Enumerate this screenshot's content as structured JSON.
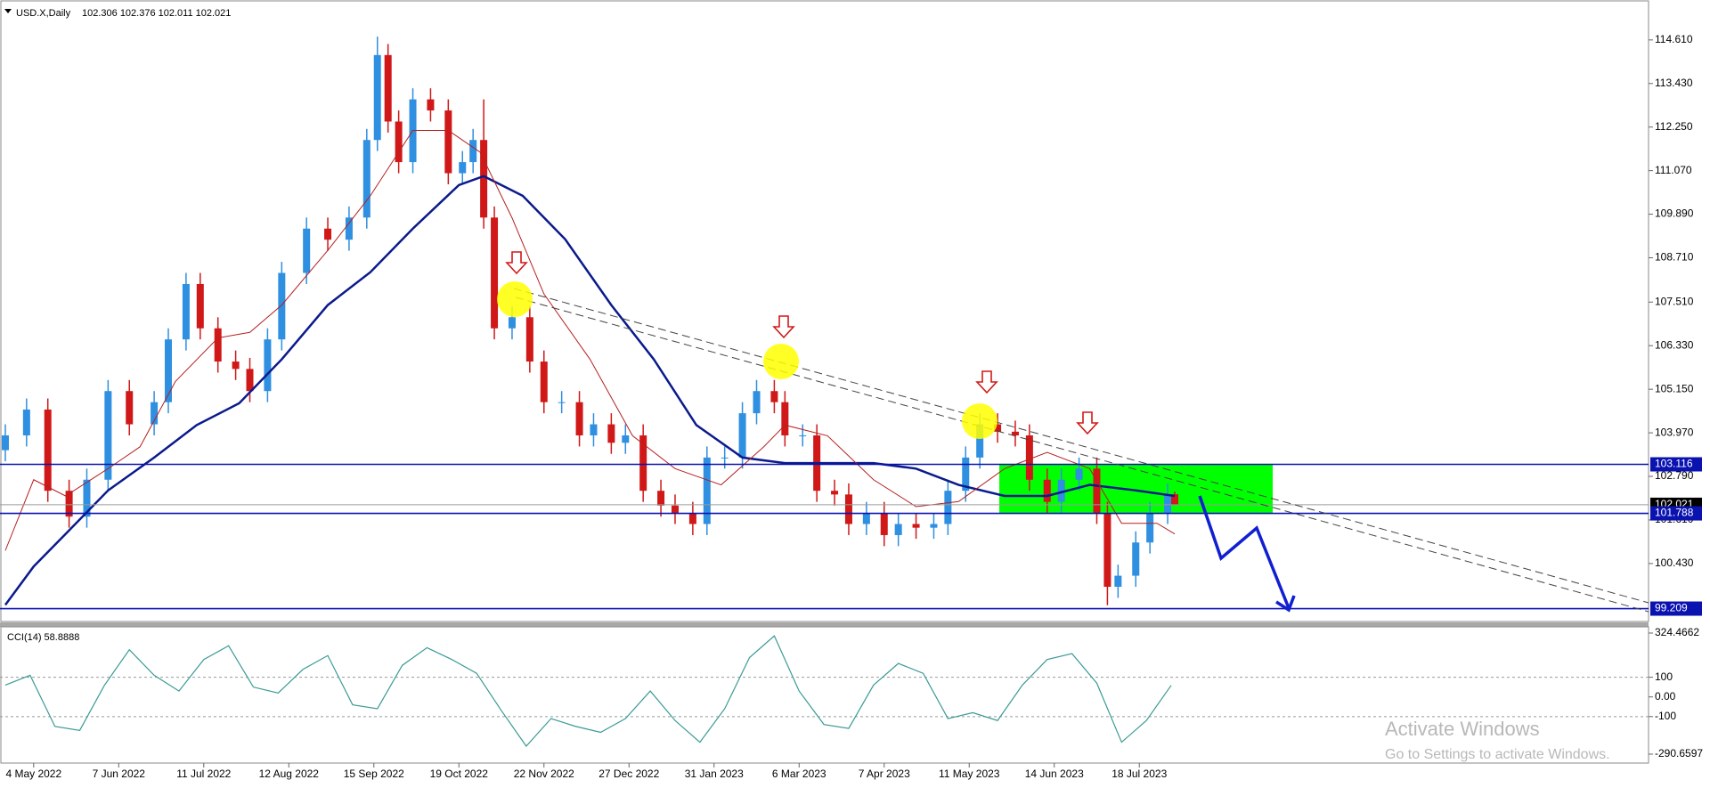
{
  "chart_data": [
    {
      "type": "candlestick",
      "title": "USD.X,Daily",
      "quote": "102.306 102.376 102.011 102.021",
      "x": [
        0,
        6,
        12,
        18,
        23,
        29,
        35,
        42,
        46,
        51,
        55,
        60,
        65,
        69,
        74,
        78,
        85,
        91,
        97,
        102,
        105,
        108,
        111,
        115,
        120,
        125,
        129,
        132,
        135,
        138,
        143,
        148,
        152,
        157,
        162,
        166,
        171,
        175,
        180,
        185,
        189,
        194,
        198,
        203,
        208,
        212,
        217,
        220,
        225,
        229,
        234,
        238,
        243,
        248,
        252,
        257,
        262,
        266,
        271,
        275,
        280,
        285,
        289,
        294,
        298,
        303,
        308,
        311,
        314,
        319,
        323,
        328,
        330
      ],
      "open": [
        103.5,
        103.9,
        104.6,
        102.4,
        101.7,
        102.7,
        105.1,
        104.2,
        104.8,
        106.5,
        108.0,
        106.8,
        105.9,
        105.7,
        105.1,
        106.5,
        108.3,
        109.5,
        109.2,
        109.8,
        111.9,
        114.2,
        112.4,
        111.3,
        113.0,
        112.7,
        111.0,
        111.3,
        111.9,
        109.8,
        106.8,
        107.1,
        105.9,
        104.8,
        104.8,
        103.9,
        104.2,
        103.7,
        103.9,
        102.4,
        102.0,
        101.8,
        101.5,
        103.3,
        103.3,
        104.5,
        105.1,
        104.8,
        103.9,
        103.9,
        102.4,
        102.3,
        101.5,
        101.8,
        101.2,
        101.5,
        101.4,
        101.5,
        102.4,
        103.3,
        104.2,
        104.0,
        103.9,
        102.7,
        102.1,
        102.7,
        103.0,
        101.8,
        99.8,
        100.1,
        101.0,
        101.8,
        102.306
      ],
      "high": [
        104.2,
        104.9,
        104.9,
        102.7,
        103.0,
        105.4,
        105.4,
        105.1,
        106.8,
        108.3,
        108.3,
        107.1,
        106.2,
        106.0,
        106.8,
        108.6,
        109.8,
        109.8,
        110.1,
        112.2,
        114.7,
        114.5,
        112.7,
        113.3,
        113.3,
        113.0,
        111.6,
        112.2,
        113.0,
        110.1,
        107.4,
        107.4,
        106.2,
        105.1,
        105.1,
        104.5,
        104.5,
        104.2,
        104.2,
        102.7,
        102.3,
        102.1,
        103.6,
        103.6,
        104.8,
        105.4,
        105.4,
        105.1,
        104.2,
        104.2,
        102.7,
        102.6,
        102.1,
        102.1,
        101.8,
        101.8,
        101.8,
        102.7,
        103.6,
        104.5,
        104.5,
        104.3,
        104.2,
        103.0,
        103.0,
        103.3,
        103.3,
        102.1,
        100.4,
        101.3,
        102.1,
        102.6,
        102.376
      ],
      "low": [
        103.2,
        103.6,
        102.1,
        101.4,
        101.4,
        102.4,
        103.9,
        103.9,
        104.5,
        106.2,
        106.5,
        105.6,
        105.4,
        104.8,
        104.8,
        106.2,
        108.0,
        108.9,
        108.9,
        109.5,
        111.6,
        112.1,
        111.0,
        111.0,
        112.4,
        110.7,
        110.7,
        111.0,
        109.5,
        106.5,
        106.5,
        105.6,
        104.5,
        104.5,
        103.6,
        103.6,
        103.4,
        103.4,
        102.1,
        101.7,
        101.5,
        101.2,
        101.2,
        103.0,
        103.0,
        104.2,
        104.5,
        103.6,
        103.6,
        102.1,
        102.0,
        101.2,
        101.2,
        100.9,
        100.9,
        101.1,
        101.1,
        101.2,
        102.1,
        103.0,
        103.7,
        103.6,
        102.4,
        101.8,
        101.8,
        102.4,
        101.5,
        99.3,
        99.5,
        99.8,
        100.7,
        101.5,
        102.011
      ],
      "close": [
        103.9,
        104.6,
        102.4,
        101.7,
        102.7,
        105.1,
        104.2,
        104.8,
        106.5,
        108.0,
        106.8,
        105.9,
        105.7,
        105.1,
        106.5,
        108.3,
        109.5,
        109.2,
        109.8,
        111.9,
        114.2,
        112.4,
        111.3,
        113.0,
        112.7,
        111.0,
        111.3,
        111.9,
        109.8,
        106.8,
        107.1,
        105.9,
        104.8,
        104.8,
        103.9,
        104.2,
        103.7,
        103.9,
        102.4,
        102.0,
        101.8,
        101.5,
        103.3,
        103.3,
        104.5,
        105.1,
        104.8,
        103.9,
        103.9,
        102.4,
        102.3,
        101.5,
        101.8,
        101.2,
        101.5,
        101.4,
        101.5,
        102.4,
        103.3,
        104.2,
        104.0,
        103.9,
        102.7,
        102.1,
        102.7,
        103.0,
        101.8,
        99.8,
        100.1,
        101.0,
        101.8,
        102.3,
        102.021
      ],
      "up_color": "#2f8fe0",
      "down_color": "#d01818",
      "overlays": [
        {
          "color": "#0a1a8c",
          "width": 2.5,
          "x": [
            0,
            8,
            17,
            29,
            42,
            54,
            66,
            78,
            91,
            103,
            115,
            128,
            135,
            146,
            158,
            171,
            183,
            195,
            208,
            220,
            232,
            245,
            257,
            269,
            282,
            294,
            306,
            319,
            330
          ],
          "values": [
            99.31,
            100.35,
            101.23,
            102.41,
            103.3,
            104.18,
            104.77,
            105.96,
            107.43,
            108.32,
            109.5,
            110.68,
            110.92,
            110.39,
            109.21,
            107.43,
            105.96,
            104.18,
            103.3,
            103.15,
            103.15,
            103.15,
            103.0,
            102.56,
            102.26,
            102.26,
            102.56,
            102.41,
            102.26
          ]
        },
        {
          "color": "#b42020",
          "width": 1,
          "x": [
            0,
            8,
            17,
            29,
            38,
            48,
            60,
            69,
            78,
            91,
            103,
            115,
            125,
            134,
            143,
            152,
            165,
            177,
            189,
            202,
            214,
            220,
            232,
            245,
            257,
            269,
            282,
            294,
            306,
            315,
            325,
            330
          ],
          "values": [
            100.78,
            102.7,
            102.26,
            103.0,
            103.59,
            105.36,
            106.54,
            106.69,
            107.43,
            108.91,
            110.39,
            112.16,
            112.16,
            111.57,
            109.79,
            107.73,
            105.96,
            103.89,
            103.0,
            102.56,
            103.59,
            104.18,
            103.89,
            102.7,
            101.97,
            102.11,
            103.0,
            103.44,
            103.0,
            101.52,
            101.52,
            101.23
          ]
        }
      ],
      "levels": [
        103.116,
        101.788,
        99.209
      ],
      "level_color": "#0a12b0",
      "last_price": 102.021,
      "xlim": [
        -1.5,
        463.7
      ],
      "xticks": [
        {
          "value": 8,
          "label": "4 May 2022"
        },
        {
          "value": 32,
          "label": "7 Jun 2022"
        },
        {
          "value": 56,
          "label": "11 Jul 2022"
        },
        {
          "value": 80,
          "label": "12 Aug 2022"
        },
        {
          "value": 104,
          "label": "15 Sep 2022"
        },
        {
          "value": 128,
          "label": "19 Oct 2022"
        },
        {
          "value": 152,
          "label": "22 Nov 2022"
        },
        {
          "value": 176,
          "label": "27 Dec 2022"
        },
        {
          "value": 200,
          "label": "31 Jan 2023"
        },
        {
          "value": 224,
          "label": "6 Mar 2023"
        },
        {
          "value": 248,
          "label": "7 Apr 2023"
        },
        {
          "value": 272,
          "label": "11 May 2023"
        },
        {
          "value": 296,
          "label": "14 Jun 2023"
        },
        {
          "value": 320,
          "label": "18 Jul 2023"
        }
      ],
      "ylim": [
        98.86,
        115.45
      ],
      "yticks": [
        {
          "value": 114.61,
          "label": "114.610"
        },
        {
          "value": 113.43,
          "label": "113.430"
        },
        {
          "value": 112.25,
          "label": "112.250"
        },
        {
          "value": 111.07,
          "label": "111.070"
        },
        {
          "value": 109.89,
          "label": "109.890"
        },
        {
          "value": 108.71,
          "label": "108.710"
        },
        {
          "value": 107.51,
          "label": "107.510"
        },
        {
          "value": 106.33,
          "label": "106.330"
        },
        {
          "value": 105.15,
          "label": "105.150"
        },
        {
          "value": 103.97,
          "label": "103.970"
        },
        {
          "value": 102.79,
          "label": "102.790"
        },
        {
          "value": 101.61,
          "label": "101.610"
        },
        {
          "value": 100.43,
          "label": "100.430"
        }
      ]
    },
    {
      "type": "line",
      "title": "CCI(14) 58.8888",
      "color": "#3a9a96",
      "x": [
        0,
        7,
        14,
        21,
        28,
        35,
        42,
        49,
        56,
        63,
        70,
        77,
        84,
        91,
        98,
        105,
        112,
        119,
        126,
        133,
        140,
        147,
        154,
        161,
        168,
        175,
        182,
        189,
        196,
        203,
        210,
        217,
        224,
        231,
        238,
        245,
        252,
        259,
        266,
        273,
        280,
        287,
        294,
        301,
        308,
        315,
        322,
        329
      ],
      "values": [
        60,
        110,
        -150,
        -170,
        60,
        240,
        110,
        30,
        190,
        260,
        50,
        20,
        140,
        210,
        -40,
        -60,
        160,
        250,
        190,
        120,
        -70,
        -250,
        -110,
        -150,
        -180,
        -110,
        30,
        -120,
        -230,
        -60,
        200,
        310,
        30,
        -140,
        -160,
        60,
        170,
        120,
        -110,
        -80,
        -120,
        60,
        190,
        220,
        70,
        -230,
        -120,
        58.8888
      ],
      "ylim": [
        -336,
        356
      ],
      "yticks": [
        324.4662,
        100,
        {
          "value": 0,
          "label": "0.00"
        },
        -100,
        -290.6597
      ],
      "levels": [
        100,
        -100
      ]
    }
  ],
  "watermark": {
    "title": "Activate Windows",
    "subtitle": "Go to Settings to activate Windows."
  }
}
